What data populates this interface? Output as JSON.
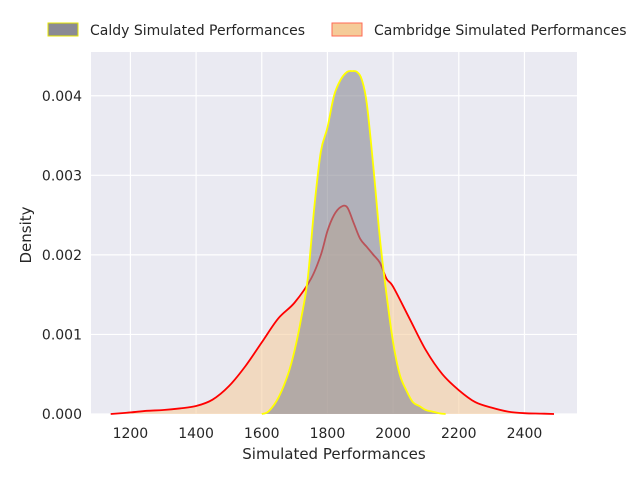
{
  "chart_data": {
    "type": "area",
    "title": "",
    "xlabel": "Simulated Performances",
    "ylabel": "Density",
    "xlim": [
      1080,
      2560
    ],
    "ylim": [
      0,
      0.00455
    ],
    "xticks": [
      1200,
      1400,
      1600,
      1800,
      2000,
      2200,
      2400
    ],
    "xtick_labels": [
      "1200",
      "1400",
      "1600",
      "1800",
      "2000",
      "2200",
      "2400"
    ],
    "yticks": [
      0,
      0.001,
      0.002,
      0.003,
      0.004
    ],
    "ytick_labels": [
      "0.000",
      "0.001",
      "0.002",
      "0.003",
      "0.004"
    ],
    "grid": true,
    "legend_position": "top",
    "colors": {
      "background": "#eaeaf2",
      "grid": "#ffffff",
      "cambridge_line": "#ff0000",
      "cambridge_fill": "#f5cb98",
      "caldy_line": "#ffff00",
      "caldy_fill": "#8a8a94"
    },
    "series": [
      {
        "name": "Caldy Simulated Performances",
        "x": [
          1600,
          1620,
          1650,
          1680,
          1700,
          1720,
          1740,
          1760,
          1780,
          1800,
          1820,
          1840,
          1860,
          1875,
          1890,
          1905,
          1920,
          1940,
          1960,
          1980,
          2000,
          2020,
          2040,
          2060,
          2080,
          2100,
          2120,
          2140,
          2160
        ],
        "y": [
          0.0,
          3e-05,
          0.0002,
          0.0005,
          0.0008,
          0.0012,
          0.0017,
          0.0026,
          0.0033,
          0.0036,
          0.004,
          0.0042,
          0.0043,
          0.00431,
          0.0043,
          0.0042,
          0.0039,
          0.0031,
          0.0022,
          0.0015,
          0.0009,
          0.0005,
          0.0003,
          0.00015,
          0.0001,
          5e-05,
          3e-05,
          1e-05,
          0.0
        ]
      },
      {
        "name": "Cambridge Simulated Performances",
        "x": [
          1140,
          1200,
          1250,
          1300,
          1350,
          1400,
          1450,
          1500,
          1550,
          1600,
          1650,
          1700,
          1750,
          1780,
          1800,
          1820,
          1840,
          1860,
          1880,
          1900,
          1920,
          1940,
          1960,
          1980,
          2000,
          2050,
          2100,
          2150,
          2200,
          2250,
          2300,
          2350,
          2400,
          2450,
          2490
        ],
        "y": [
          0.0,
          2e-05,
          4e-05,
          5e-05,
          7e-05,
          0.0001,
          0.00018,
          0.00035,
          0.0006,
          0.0009,
          0.0012,
          0.0014,
          0.0017,
          0.002,
          0.0023,
          0.0025,
          0.0026,
          0.0026,
          0.0024,
          0.0022,
          0.0021,
          0.002,
          0.0019,
          0.0017,
          0.0016,
          0.0012,
          0.0008,
          0.0005,
          0.0003,
          0.00015,
          8e-05,
          3e-05,
          1e-05,
          5e-06,
          0.0
        ]
      }
    ]
  },
  "legend": {
    "items": [
      {
        "label": "Caldy Simulated Performances",
        "color": "#8a8a94",
        "edge": "#e6e600"
      },
      {
        "label": "Cambridge Simulated Performances",
        "color": "#f5cb98",
        "edge": "#ff6a55"
      }
    ]
  }
}
